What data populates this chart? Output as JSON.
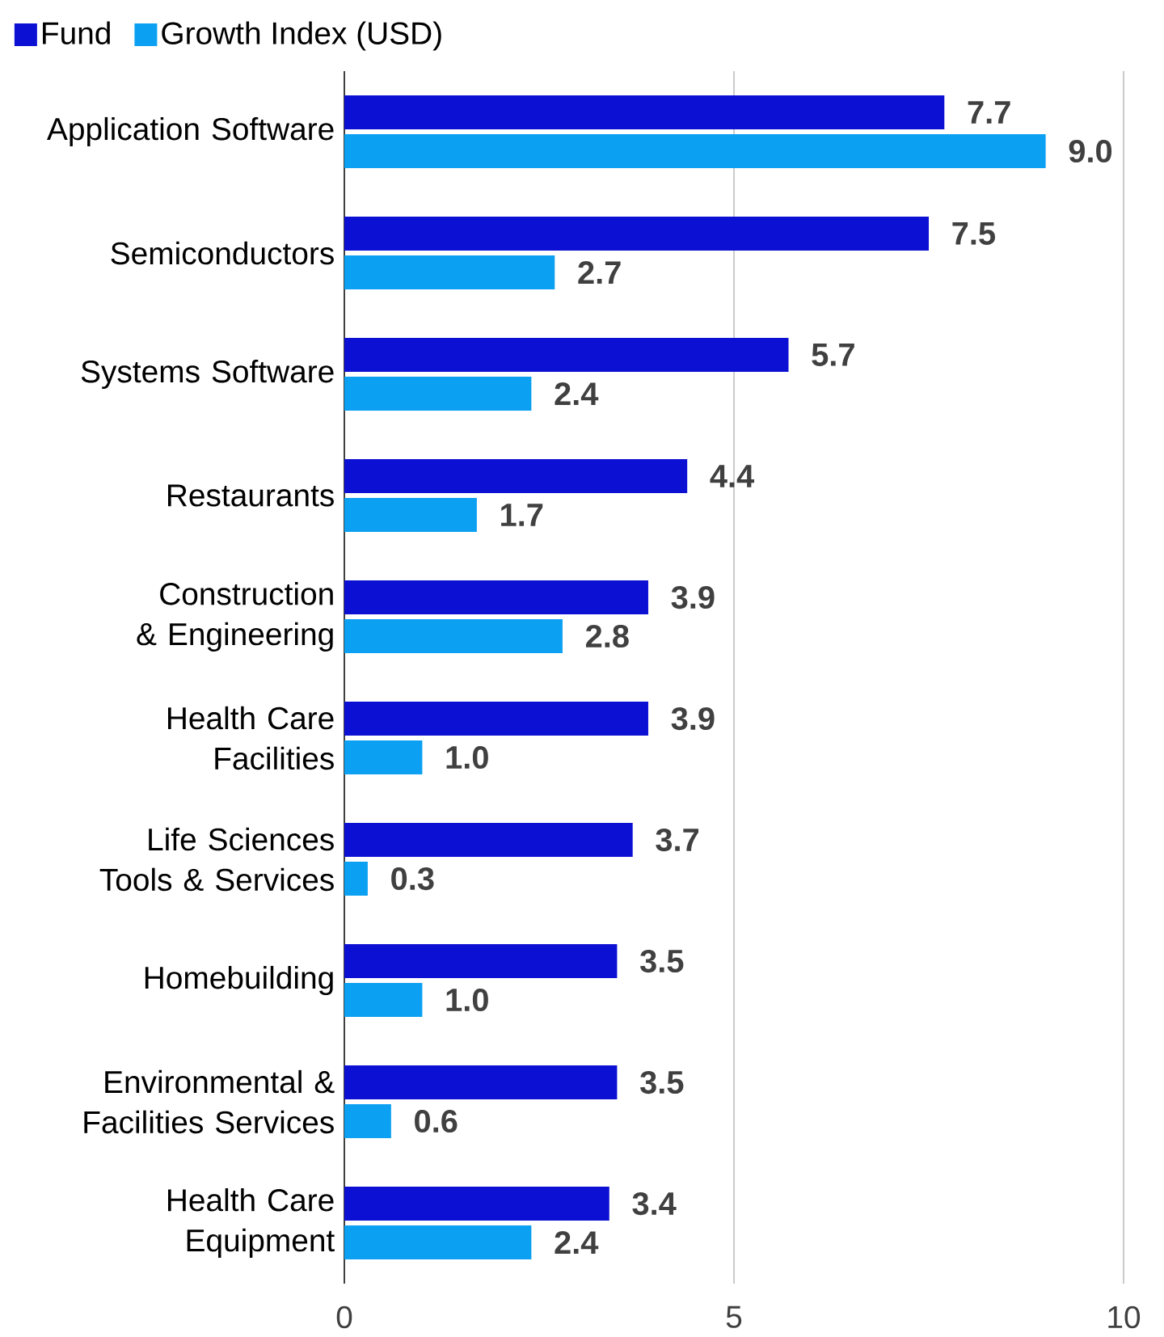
{
  "chart_data": {
    "type": "bar",
    "orientation": "horizontal",
    "categories": [
      "Application Software",
      "Semiconductors",
      "Systems Software",
      "Restaurants",
      "Construction & Engineering",
      "Health Care Facilities",
      "Life Sciences Tools & Services",
      "Homebuilding",
      "Environmental & Facilities Services",
      "Health Care Equipment"
    ],
    "series": [
      {
        "name": "Fund",
        "color": "#0c10d2",
        "values": [
          7.7,
          7.5,
          5.7,
          4.4,
          3.9,
          3.9,
          3.7,
          3.5,
          3.5,
          3.4
        ],
        "value_labels": [
          "7.7",
          "7.5",
          "5.7",
          "4.4",
          "3.9",
          "3.9",
          "3.7",
          "3.5",
          "3.5",
          "3.4"
        ]
      },
      {
        "name": "Growth Index (USD)",
        "color": "#0ba0f2",
        "values": [
          9.0,
          2.7,
          2.4,
          1.7,
          2.8,
          1.0,
          0.3,
          1.0,
          0.6,
          2.4
        ],
        "value_labels": [
          "9.0",
          "2.7",
          "2.4",
          "1.7",
          "2.8",
          "1.0",
          "0.3",
          "1.0",
          "0.6",
          "2.4"
        ]
      }
    ],
    "xlim": [
      0,
      10
    ],
    "xticks": [
      0,
      5,
      10
    ],
    "grid": "x",
    "legend": "top left"
  }
}
